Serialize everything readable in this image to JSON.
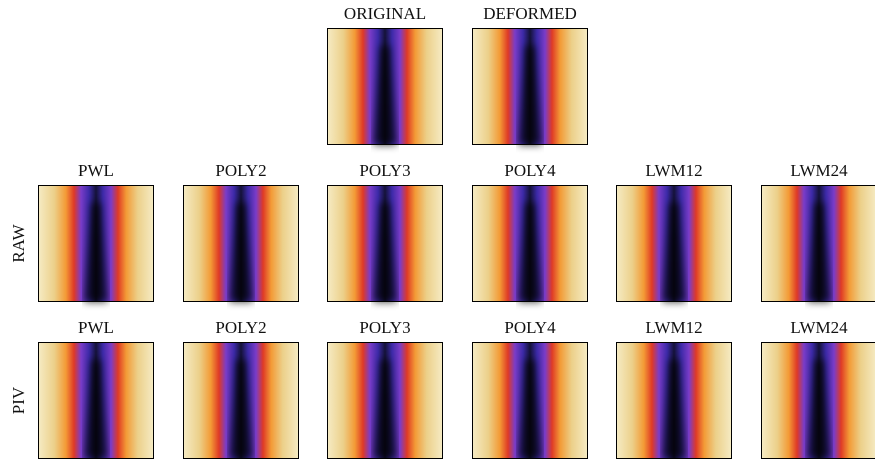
{
  "top": {
    "panels": [
      {
        "label": "ORIGINAL"
      },
      {
        "label": "DEFORMED"
      }
    ]
  },
  "rows": [
    {
      "label": "RAW",
      "panels": [
        "PWL",
        "POLY2",
        "POLY3",
        "POLY4",
        "LWM12",
        "LWM24"
      ]
    },
    {
      "label": "PIV",
      "panels": [
        "PWL",
        "POLY2",
        "POLY3",
        "POLY4",
        "LWM12",
        "LWM24"
      ]
    }
  ]
}
